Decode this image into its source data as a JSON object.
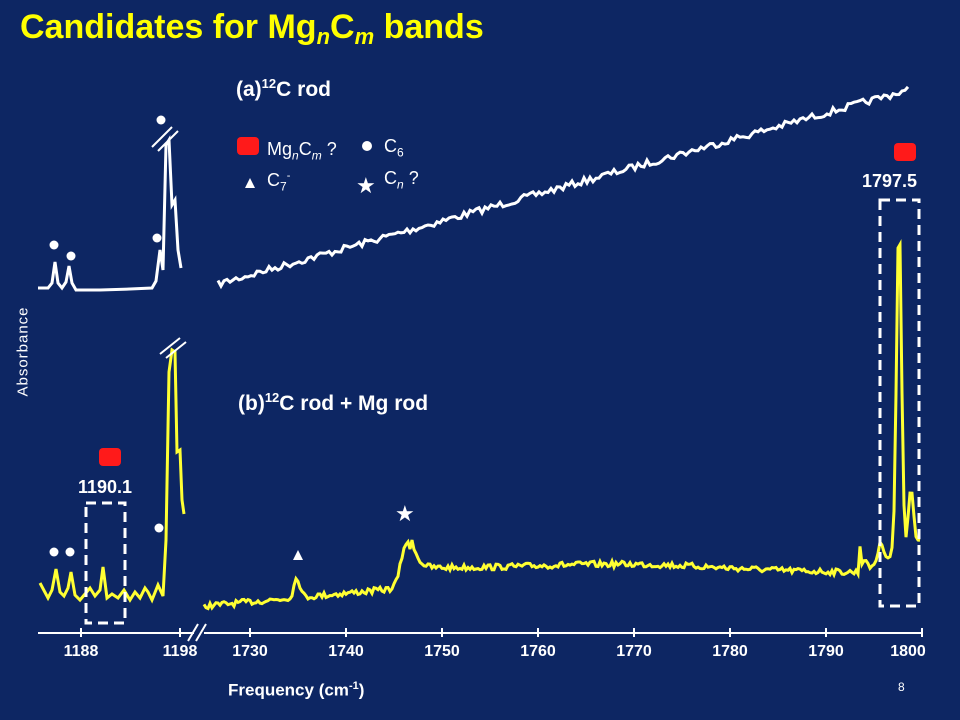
{
  "title": {
    "prefix": "Candidates for Mg",
    "sub_n": "n",
    "mid": "C",
    "sub_m": "m",
    "suffix": " bands"
  },
  "panel_a": {
    "prefix": "(a)",
    "isotope": "12",
    "text": "C rod"
  },
  "panel_b": {
    "prefix": "(b)",
    "isotope": "12",
    "text": "C rod  + Mg rod"
  },
  "legend": {
    "mgncm": {
      "base1": "Mg",
      "sub1": "n",
      "base2": "C",
      "sub2": "m",
      "suffix": " ?"
    },
    "c6": {
      "base": "C",
      "sub": "6"
    },
    "c7": {
      "base": "C",
      "sub": "7",
      "sup": "-"
    },
    "cn": {
      "base": "C",
      "sub": "n",
      "suffix": " ?"
    }
  },
  "annotations": {
    "peak_left": "1190.1",
    "peak_right": "1797.5"
  },
  "axis": {
    "ylabel": "Absorbance",
    "xlabel_text": "Frequency (cm",
    "xlabel_sup": "-1",
    "xlabel_close": ")",
    "ticks_left": [
      "1188",
      "1198"
    ],
    "ticks_right": [
      "1730",
      "1740",
      "1750",
      "1760",
      "1770",
      "1780",
      "1790",
      "1800"
    ]
  },
  "page_number": "8",
  "colors": {
    "background": "#0d2663",
    "title": "#ffff00",
    "trace_a": "#ffffff",
    "trace_b": "#ffff33",
    "marker": "#ff1a1a"
  },
  "chart_data": {
    "type": "line",
    "x_segments": [
      [
        1185,
        1198
      ],
      [
        1728,
        1800
      ]
    ],
    "series": [
      {
        "peaks": [
          1797.5
        ]
      },
      {
        "peaks": [
          1190.1,
          1735,
          1746,
          1797.5
        ]
      }
    ]
  }
}
